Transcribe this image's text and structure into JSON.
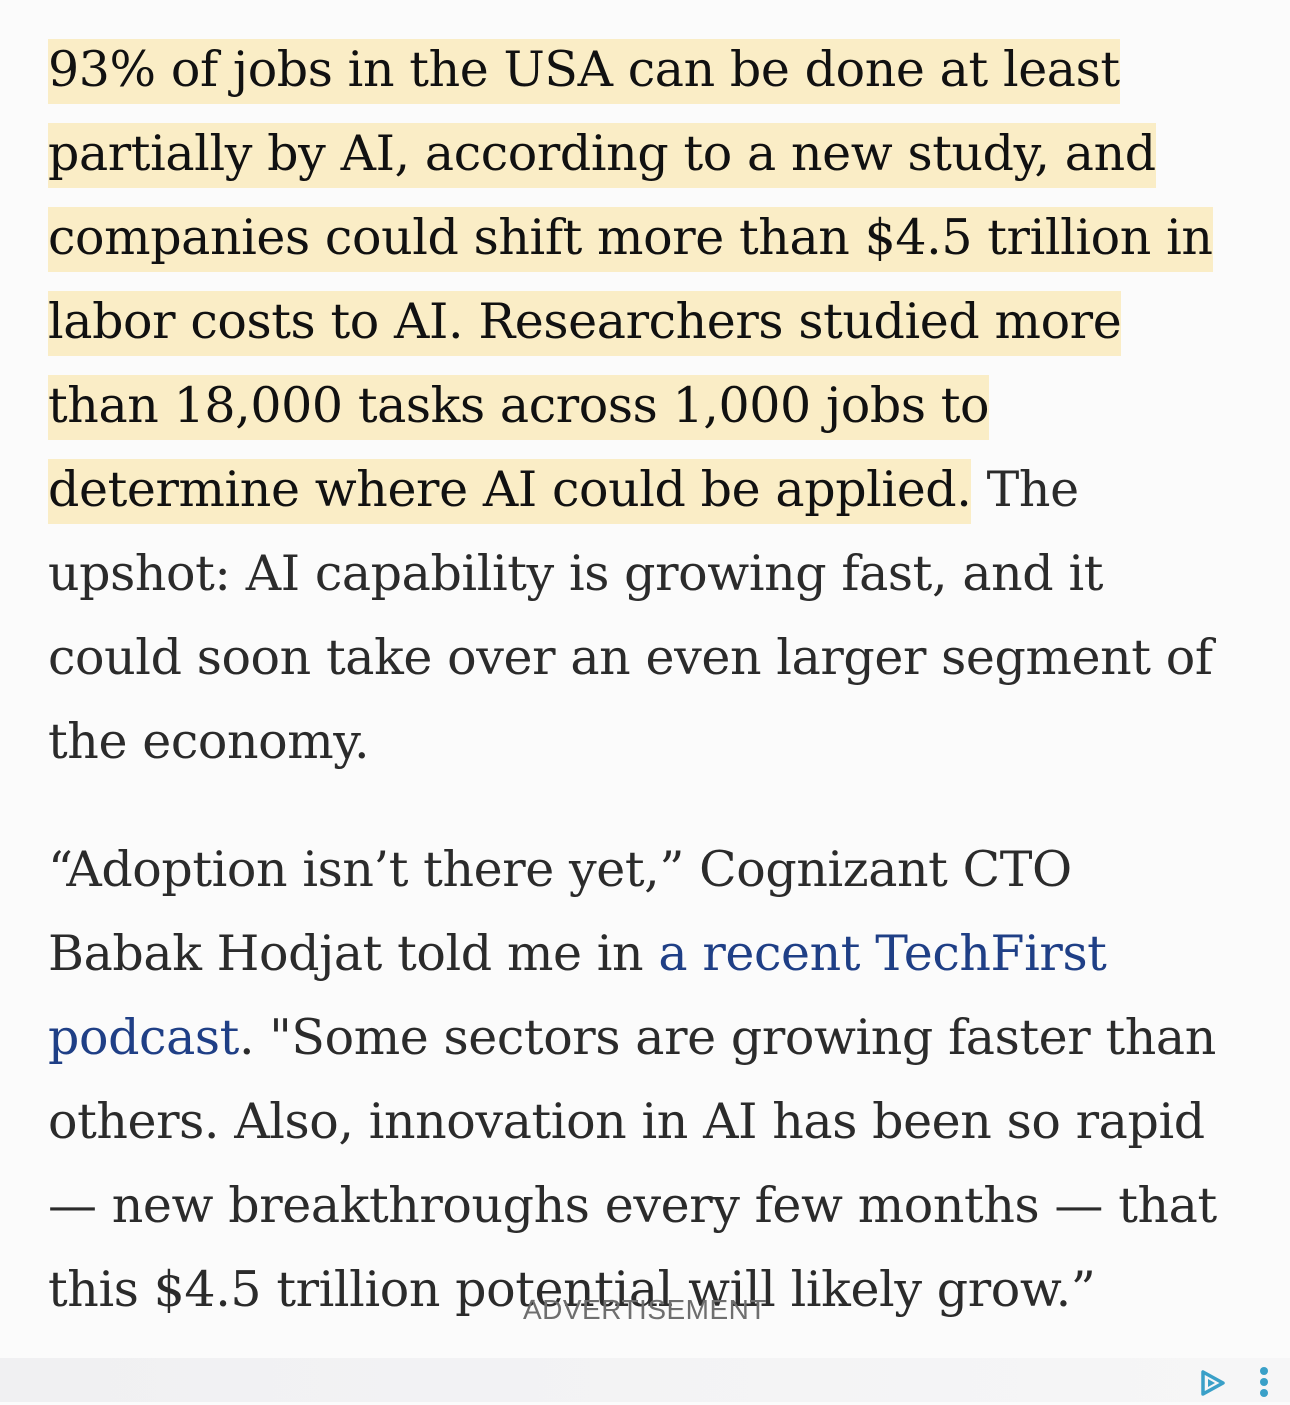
{
  "article": {
    "paragraph1": {
      "highlighted": "93% of jobs in the USA can be done at least partially by AI, according to a new study, and companies could shift more than $4.5 trillion in labor costs to AI. Researchers studied more than 18,000 tasks across 1,000 jobs to determine where AI could be applied.",
      "rest": " The upshot: AI capability is growing fast, and it could soon take over an even larger segment of the economy."
    },
    "paragraph2": {
      "before_link": "“Adoption isn’t there yet,” Cognizant CTO Babak Hodjat told me in ",
      "link_text": "a recent TechFirst podcast",
      "after_link": ". \"Some sectors are growing faster than others. Also, innovation in AI has been so rapid — new breakthroughs every few months — that this $4.5 trillion potential will likely grow.”"
    }
  },
  "ad": {
    "label": "ADVERTISEMENT",
    "choices_icon": "adchoices-icon",
    "more_icon": "more-vertical-icon"
  },
  "colors": {
    "highlight": "#faedc6",
    "link": "#1f3f86",
    "text": "#2b2b2b",
    "ad_icon": "#3aa0c8"
  }
}
